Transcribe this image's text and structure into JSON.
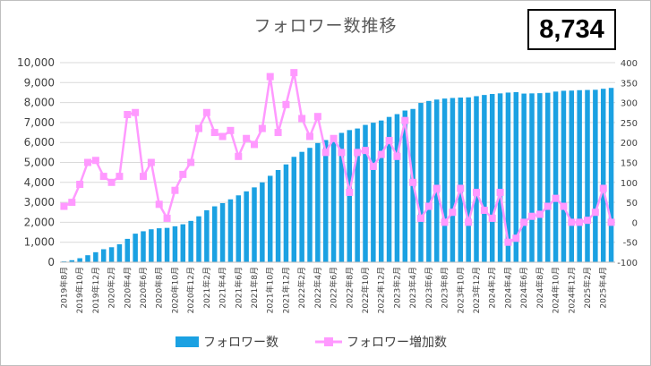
{
  "chart_data": {
    "type": "bar+line",
    "title": "フォロワー数推移",
    "badge": "8,734",
    "categories": [
      "2019年8月",
      "2019年9月",
      "2019年10月",
      "2019年11月",
      "2019年12月",
      "2020年1月",
      "2020年2月",
      "2020年3月",
      "2020年4月",
      "2020年5月",
      "2020年6月",
      "2020年7月",
      "2020年8月",
      "2020年9月",
      "2020年10月",
      "2020年11月",
      "2020年12月",
      "2021年1月",
      "2021年2月",
      "2021年3月",
      "2021年4月",
      "2021年5月",
      "2021年6月",
      "2021年7月",
      "2021年8月",
      "2021年9月",
      "2021年10月",
      "2021年11月",
      "2021年12月",
      "2022年1月",
      "2022年2月",
      "2022年3月",
      "2022年4月",
      "2022年5月",
      "2022年6月",
      "2022年7月",
      "2022年8月",
      "2022年9月",
      "2022年10月",
      "2022年11月",
      "2022年12月",
      "2023年1月",
      "2023年2月",
      "2023年3月",
      "2023年4月",
      "2023年5月",
      "2023年6月",
      "2023年7月",
      "2023年8月",
      "2023年9月",
      "2023年10月",
      "2023年11月",
      "2023年12月",
      "2024年1月",
      "2024年2月",
      "2024年3月",
      "2024年4月",
      "2024年5月",
      "2024年6月",
      "2024年7月",
      "2024年8月",
      "2024年9月",
      "2024年10月",
      "2024年11月",
      "2024年12月",
      "2025年1月",
      "2025年2月",
      "2025年3月",
      "2025年4月",
      "2025年5月"
    ],
    "x_tick_labels": [
      "2019年8月",
      "2019年10月",
      "2019年12月",
      "2020年2月",
      "2020年4月",
      "2020年6月",
      "2020年8月",
      "2020年10月",
      "2020年12月",
      "2021年2月",
      "2021年4月",
      "2021年6月",
      "2021年8月",
      "2021年10月",
      "2021年12月",
      "2022年2月",
      "2022年4月",
      "2022年6月",
      "2022年8月",
      "2022年10月",
      "2022年12月",
      "2023年2月",
      "2023年4月",
      "2023年6月",
      "2023年8月",
      "2023年10月",
      "2023年12月",
      "2024年2月",
      "2024年4月",
      "2024年6月",
      "2024年8月",
      "2024年10月",
      "2024年12月",
      "2025年2月",
      "2025年4月"
    ],
    "series": [
      {
        "name": "フォロワー数",
        "axis": "left",
        "kind": "bar",
        "color": "#1BA1E2",
        "values": [
          40,
          100,
          200,
          350,
          500,
          650,
          750,
          900,
          1170,
          1430,
          1550,
          1650,
          1700,
          1720,
          1800,
          1900,
          2070,
          2300,
          2600,
          2800,
          2960,
          3150,
          3350,
          3550,
          3750,
          4000,
          4330,
          4620,
          4900,
          5280,
          5530,
          5730,
          5970,
          6120,
          6320,
          6480,
          6620,
          6700,
          6880,
          6990,
          7100,
          7280,
          7420,
          7600,
          7680,
          7980,
          8080,
          8150,
          8200,
          8230,
          8250,
          8260,
          8320,
          8380,
          8430,
          8460,
          8500,
          8520,
          8450,
          8460,
          8470,
          8490,
          8550,
          8590,
          8600,
          8620,
          8630,
          8640,
          8690,
          8734
        ]
      },
      {
        "name": "フォロワー増加数",
        "axis": "right",
        "kind": "line",
        "color": "#FF99FF",
        "values": [
          40,
          50,
          95,
          150,
          155,
          115,
          100,
          115,
          270,
          275,
          115,
          150,
          45,
          10,
          80,
          120,
          150,
          235,
          275,
          225,
          215,
          230,
          165,
          210,
          195,
          235,
          365,
          225,
          295,
          375,
          260,
          215,
          265,
          175,
          210,
          175,
          75,
          175,
          180,
          140,
          170,
          205,
          165,
          255,
          100,
          10,
          40,
          85,
          0,
          25,
          85,
          0,
          75,
          30,
          10,
          75,
          -50,
          -40,
          0,
          15,
          20,
          40,
          60,
          40,
          0,
          0,
          5,
          25,
          85,
          0
        ]
      }
    ],
    "y_left": {
      "min": 0,
      "max": 10000,
      "step": 1000,
      "tick_labels": [
        "0",
        "1,000",
        "2,000",
        "3,000",
        "4,000",
        "5,000",
        "6,000",
        "7,000",
        "8,000",
        "9,000",
        "10,000"
      ]
    },
    "y_right": {
      "min": -100,
      "max": 400,
      "step": 50,
      "tick_labels": [
        "-100",
        "-50",
        "0",
        "50",
        "100",
        "150",
        "200",
        "250",
        "300",
        "350",
        "400"
      ],
      "negative_color": "#FF0000"
    },
    "legend": {
      "position": "bottom",
      "items": [
        "フォロワー数",
        "フォロワー増加数"
      ]
    },
    "grid": true
  }
}
